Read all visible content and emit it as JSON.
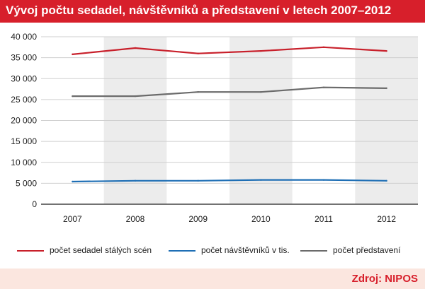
{
  "title": "Vývoj počtu sedadel, návštěvníků a představení v letech 2007–2012",
  "source": "Zdroj: NIPOS",
  "colors": {
    "title_bg": "#d71f2b",
    "source_bg": "#fbe6df",
    "band": "#ececec"
  },
  "chart_data": {
    "type": "line",
    "x": [
      "2007",
      "2008",
      "2009",
      "2010",
      "2011",
      "2012"
    ],
    "y_ticks": [
      "0",
      "5 000",
      "10 000",
      "15 000",
      "20 000",
      "25 000",
      "30 000",
      "35 000",
      "40 000"
    ],
    "ylim": [
      0,
      40000
    ],
    "grid": true,
    "legend_position": "bottom",
    "series": [
      {
        "name": "počet sedadel stálých scén",
        "color": "#c8202b",
        "values": [
          35800,
          37300,
          36000,
          36600,
          37500,
          36600
        ]
      },
      {
        "name": "počet návštěvníků v tis.",
        "color": "#1f6fb5",
        "values": [
          5400,
          5600,
          5600,
          5800,
          5800,
          5600
        ]
      },
      {
        "name": "počet představení",
        "color": "#6b6b6b",
        "values": [
          25800,
          25800,
          26800,
          26800,
          27900,
          27700
        ]
      }
    ]
  }
}
